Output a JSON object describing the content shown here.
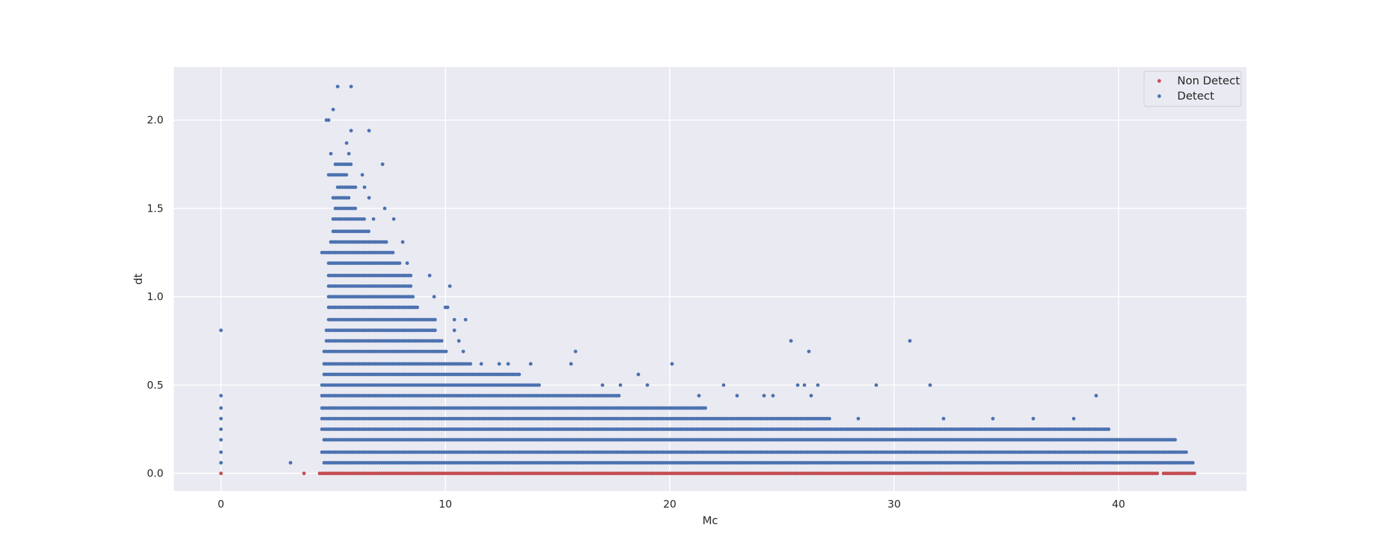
{
  "chart_data": {
    "type": "scatter",
    "title": "",
    "xlabel": "Mc",
    "ylabel": "dt",
    "xlim": [
      -2.1,
      45.7
    ],
    "ylim": [
      -0.1,
      2.3
    ],
    "xticks": [
      0,
      10,
      20,
      30,
      40
    ],
    "yticks": [
      0.0,
      0.5,
      1.0,
      1.5,
      2.0
    ],
    "xtick_labels": [
      "0",
      "10",
      "20",
      "30",
      "40"
    ],
    "ytick_labels": [
      "0.0",
      "0.5",
      "1.0",
      "1.5",
      "2.0"
    ],
    "grid": true,
    "legend_position": "top-right",
    "background": "#eaeaf2",
    "series": [
      {
        "name": "Non Detect",
        "color": "#c44e52",
        "points": [
          [
            0,
            0.0
          ],
          [
            3.7,
            0.0
          ]
        ],
        "bands": [
          {
            "y": 0.0,
            "x_from": 4.4,
            "x_to": 41.8
          },
          {
            "y": 0.0,
            "x_from": 42.0,
            "x_to": 43.4
          }
        ]
      },
      {
        "name": "Detect",
        "color": "#4c72b0",
        "points": [
          [
            0,
            0.06
          ],
          [
            0,
            0.12
          ],
          [
            0,
            0.19
          ],
          [
            0,
            0.25
          ],
          [
            0,
            0.31
          ],
          [
            0,
            0.37
          ],
          [
            0,
            0.44
          ],
          [
            0,
            0.81
          ],
          [
            3.1,
            0.06
          ],
          [
            5.2,
            2.19
          ],
          [
            5.8,
            2.19
          ],
          [
            5.0,
            2.06
          ],
          [
            4.7,
            2.0
          ],
          [
            4.8,
            2.0
          ],
          [
            5.8,
            1.94
          ],
          [
            6.6,
            1.94
          ],
          [
            5.6,
            1.87
          ],
          [
            4.9,
            1.81
          ],
          [
            5.7,
            1.81
          ],
          [
            7.2,
            1.75
          ],
          [
            6.3,
            1.69
          ],
          [
            6.4,
            1.62
          ],
          [
            6.6,
            1.56
          ],
          [
            7.3,
            1.5
          ],
          [
            6.8,
            1.44
          ],
          [
            7.7,
            1.44
          ],
          [
            8.1,
            1.31
          ],
          [
            8.3,
            1.19
          ],
          [
            9.3,
            1.12
          ],
          [
            10.2,
            1.06
          ],
          [
            9.5,
            1.0
          ],
          [
            10.0,
            0.94
          ],
          [
            10.1,
            0.94
          ],
          [
            10.4,
            0.87
          ],
          [
            10.9,
            0.87
          ],
          [
            10.4,
            0.81
          ],
          [
            10.6,
            0.75
          ],
          [
            10.8,
            0.69
          ],
          [
            11.6,
            0.62
          ],
          [
            12.4,
            0.62
          ],
          [
            12.8,
            0.62
          ],
          [
            13.8,
            0.62
          ],
          [
            15.6,
            0.62
          ],
          [
            15.8,
            0.69
          ],
          [
            20.1,
            0.62
          ],
          [
            18.6,
            0.56
          ],
          [
            19.0,
            0.5
          ],
          [
            17.0,
            0.5
          ],
          [
            17.8,
            0.5
          ],
          [
            22.4,
            0.5
          ],
          [
            25.4,
            0.75
          ],
          [
            26.2,
            0.69
          ],
          [
            25.7,
            0.5
          ],
          [
            26.0,
            0.5
          ],
          [
            26.6,
            0.5
          ],
          [
            29.2,
            0.5
          ],
          [
            30.7,
            0.75
          ],
          [
            31.6,
            0.5
          ],
          [
            21.3,
            0.44
          ],
          [
            23.0,
            0.44
          ],
          [
            24.2,
            0.44
          ],
          [
            24.6,
            0.44
          ],
          [
            26.3,
            0.44
          ],
          [
            34.4,
            0.31
          ],
          [
            36.2,
            0.31
          ],
          [
            38.0,
            0.31
          ],
          [
            39.0,
            0.44
          ],
          [
            28.4,
            0.31
          ],
          [
            32.2,
            0.31
          ]
        ],
        "bands": [
          {
            "y": 0.06,
            "x_from": 4.6,
            "x_to": 43.4
          },
          {
            "y": 0.12,
            "x_from": 4.5,
            "x_to": 43.1
          },
          {
            "y": 0.19,
            "x_from": 4.6,
            "x_to": 42.6
          },
          {
            "y": 0.25,
            "x_from": 4.5,
            "x_to": 39.6
          },
          {
            "y": 0.31,
            "x_from": 4.5,
            "x_to": 27.2
          },
          {
            "y": 0.37,
            "x_from": 4.5,
            "x_to": 21.6
          },
          {
            "y": 0.44,
            "x_from": 4.5,
            "x_to": 17.8
          },
          {
            "y": 0.5,
            "x_from": 4.5,
            "x_to": 14.2
          },
          {
            "y": 0.56,
            "x_from": 4.6,
            "x_to": 13.3
          },
          {
            "y": 0.62,
            "x_from": 4.6,
            "x_to": 11.2
          },
          {
            "y": 0.69,
            "x_from": 4.6,
            "x_to": 10.1
          },
          {
            "y": 0.75,
            "x_from": 4.7,
            "x_to": 9.9
          },
          {
            "y": 0.81,
            "x_from": 4.7,
            "x_to": 9.6
          },
          {
            "y": 0.87,
            "x_from": 4.8,
            "x_to": 9.6
          },
          {
            "y": 0.94,
            "x_from": 4.8,
            "x_to": 8.8
          },
          {
            "y": 1.0,
            "x_from": 4.8,
            "x_to": 8.6
          },
          {
            "y": 1.06,
            "x_from": 4.8,
            "x_to": 8.5
          },
          {
            "y": 1.12,
            "x_from": 4.8,
            "x_to": 8.5
          },
          {
            "y": 1.19,
            "x_from": 4.8,
            "x_to": 8.0
          },
          {
            "y": 1.25,
            "x_from": 4.5,
            "x_to": 7.7
          },
          {
            "y": 1.31,
            "x_from": 4.9,
            "x_to": 7.4
          },
          {
            "y": 1.37,
            "x_from": 5.0,
            "x_to": 6.6
          },
          {
            "y": 1.44,
            "x_from": 5.0,
            "x_to": 6.4
          },
          {
            "y": 1.5,
            "x_from": 5.1,
            "x_to": 6.0
          },
          {
            "y": 1.56,
            "x_from": 5.0,
            "x_to": 5.7
          },
          {
            "y": 1.62,
            "x_from": 5.2,
            "x_to": 6.0
          },
          {
            "y": 1.69,
            "x_from": 4.8,
            "x_to": 5.6
          },
          {
            "y": 1.75,
            "x_from": 5.1,
            "x_to": 5.8
          }
        ]
      }
    ]
  }
}
